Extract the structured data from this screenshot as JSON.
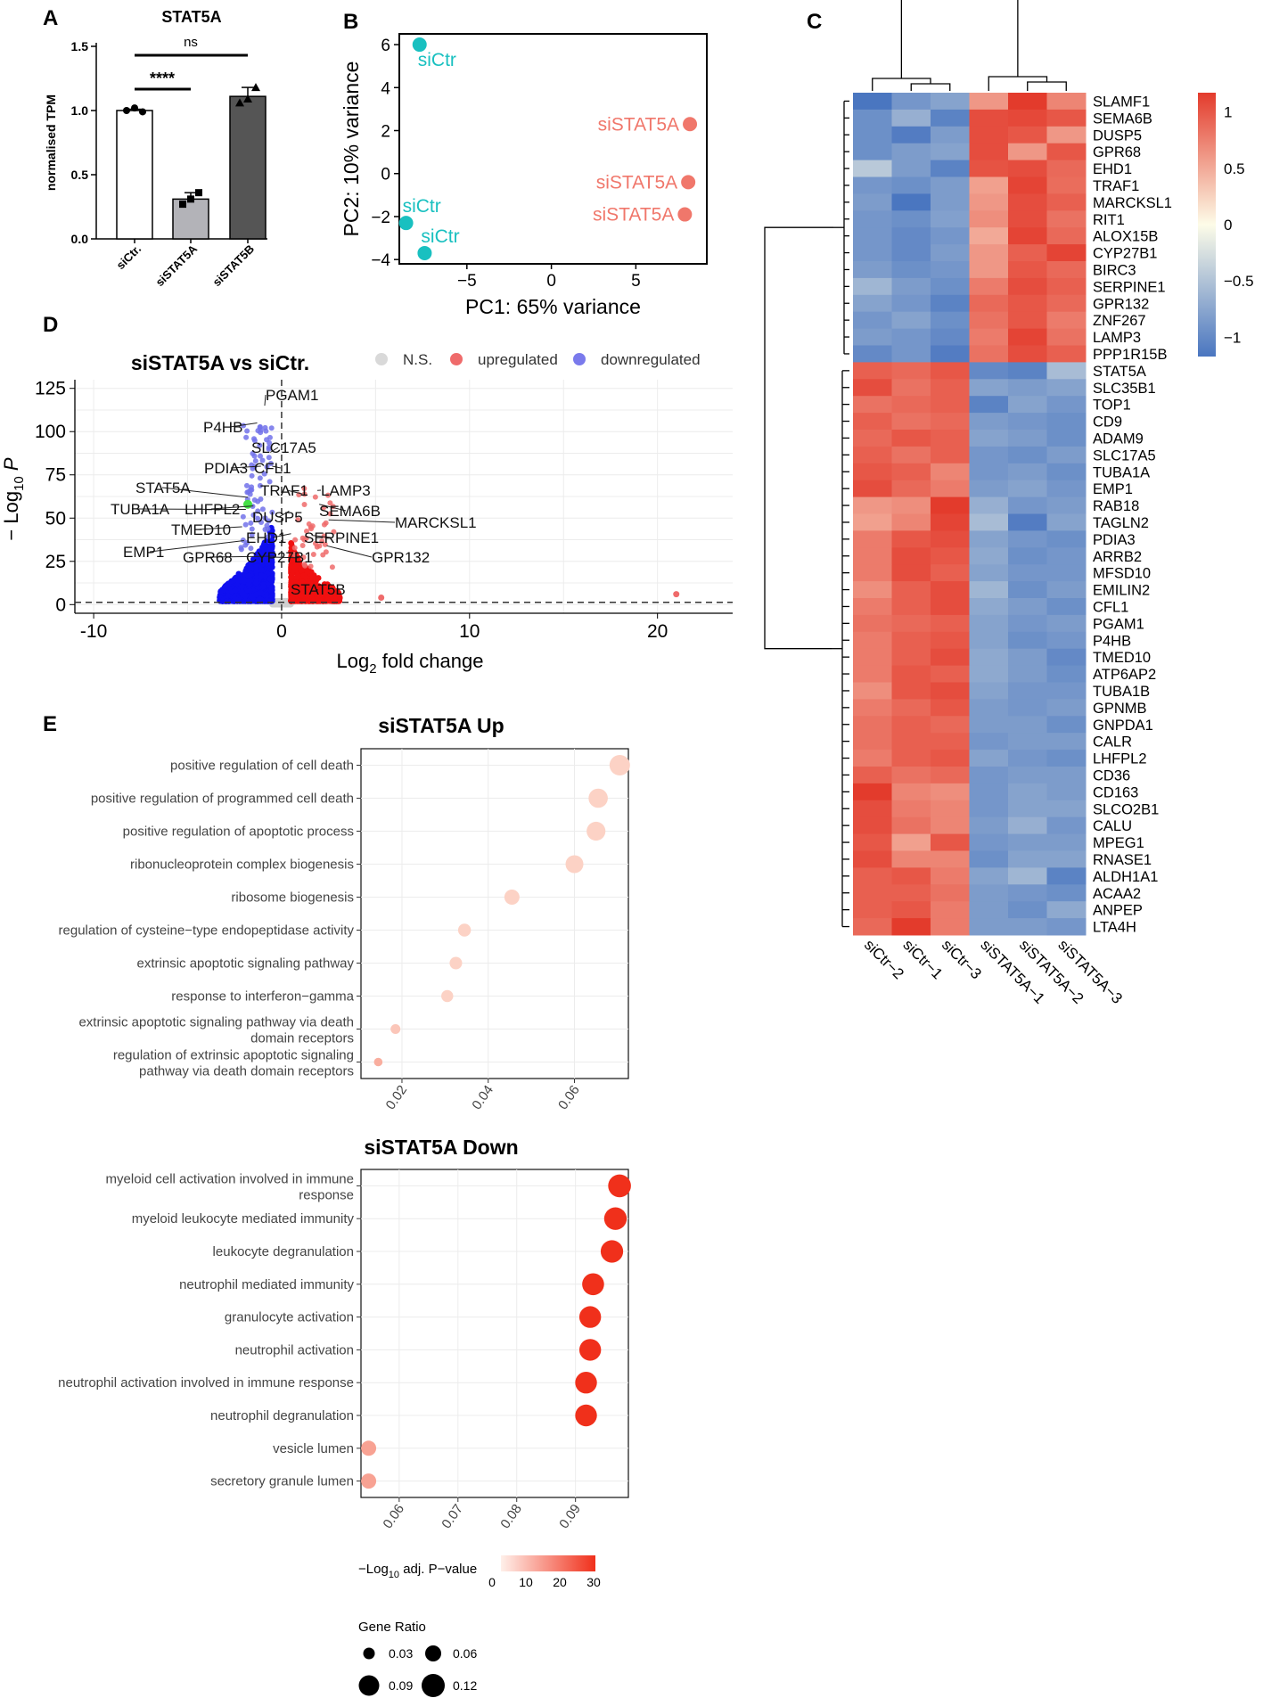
{
  "chart_data": [
    {
      "panel": "A",
      "type": "bar",
      "title": "STAT5A",
      "ylabel": "normalised TPM",
      "ylim": [
        0,
        1.5
      ],
      "yticks": [
        "0.0",
        "0.5",
        "1.0",
        "1.5"
      ],
      "categories": [
        "siCtr.",
        "siSTAT5A",
        "siSTAT5B"
      ],
      "values": [
        1.0,
        0.31,
        1.11
      ],
      "errors": [
        0.01,
        0.05,
        0.07
      ],
      "points": [
        [
          1.0,
          1.02,
          0.99
        ],
        [
          0.27,
          0.31,
          0.36
        ],
        [
          1.06,
          1.09,
          1.18
        ]
      ],
      "colors": [
        "#ffffff",
        "#b3b3b8",
        "#555555"
      ],
      "annotations": [
        {
          "from": 0,
          "to": 1,
          "label": "****"
        },
        {
          "from": 0,
          "to": 2,
          "label": "ns"
        }
      ]
    },
    {
      "panel": "B",
      "type": "scatter",
      "xlabel": "PC1: 65% variance",
      "ylabel": "PC2: 10% variance",
      "xlim": [
        -9,
        9.2
      ],
      "ylim": [
        -4.2,
        6.5
      ],
      "xticks": [
        -5,
        0,
        5
      ],
      "yticks": [
        -4,
        -2,
        0,
        2,
        4,
        6
      ],
      "series": [
        {
          "name": "siCtr",
          "color": "#19c0c0",
          "points": [
            [
              -7.8,
              6.0,
              "siCtr"
            ],
            [
              -8.6,
              -2.3,
              "siCtr"
            ],
            [
              -7.5,
              -3.7,
              "siCtr"
            ]
          ]
        },
        {
          "name": "siSTAT5A",
          "color": "#f0776b",
          "points": [
            [
              8.2,
              2.3,
              "siSTAT5A"
            ],
            [
              8.1,
              -0.4,
              "siSTAT5A"
            ],
            [
              7.9,
              -1.9,
              "siSTAT5A"
            ]
          ]
        }
      ]
    },
    {
      "panel": "C",
      "type": "heatmap",
      "columns": [
        "siCtr−2",
        "siCtr−1",
        "siCtr−3",
        "siSTAT5A−1",
        "siSTAT5A−2",
        "siSTAT5A−3"
      ],
      "rows": [
        "SLAMF1",
        "SEMA6B",
        "DUSP5",
        "GPR68",
        "EHD1",
        "TRAF1",
        "MARCKSL1",
        "RIT1",
        "ALOX15B",
        "CYP27B1",
        "BIRC3",
        "SERPINE1",
        "GPR132",
        "ZNF267",
        "LAMP3",
        "PPP1R15B",
        "STAT5A",
        "SLC35B1",
        "TOP1",
        "CD9",
        "ADAM9",
        "SLC17A5",
        "TUBA1A",
        "EMP1",
        "RAB18",
        "TAGLN2",
        "PDIA3",
        "ARRB2",
        "MFSD10",
        "EMILIN2",
        "CFL1",
        "PGAM1",
        "P4HB",
        "TMED10",
        "ATP6AP2",
        "TUBA1B",
        "GPNMB",
        "GNPDA1",
        "CALR",
        "LHFPL2",
        "CD36",
        "CD163",
        "SLCO2B1",
        "CALU",
        "MPEG1",
        "RNASE1",
        "ALDH1A1",
        "ACAA2",
        "ANPEP",
        "LTA4H"
      ],
      "values": [
        [
          -1.05,
          -0.8,
          -0.7,
          0.55,
          1.1,
          0.65
        ],
        [
          -0.85,
          -0.6,
          -0.95,
          0.95,
          0.98,
          0.9
        ],
        [
          -0.85,
          -1.0,
          -0.75,
          0.95,
          0.9,
          0.55
        ],
        [
          -0.85,
          -0.75,
          -0.7,
          0.95,
          0.55,
          0.9
        ],
        [
          -0.4,
          -0.75,
          -0.95,
          0.92,
          0.95,
          0.8
        ],
        [
          -0.8,
          -0.85,
          -0.75,
          0.5,
          1.0,
          0.78
        ],
        [
          -0.75,
          -1.05,
          -0.75,
          0.55,
          0.95,
          0.85
        ],
        [
          -0.8,
          -0.85,
          -0.72,
          0.6,
          0.95,
          0.75
        ],
        [
          -0.8,
          -0.9,
          -0.8,
          0.45,
          1.0,
          0.8
        ],
        [
          -0.8,
          -0.9,
          -0.75,
          0.55,
          0.85,
          1.0
        ],
        [
          -0.75,
          -0.85,
          -0.8,
          0.55,
          0.9,
          0.8
        ],
        [
          -0.55,
          -0.75,
          -0.85,
          0.7,
          0.95,
          0.85
        ],
        [
          -0.7,
          -0.8,
          -0.95,
          0.8,
          0.9,
          0.8
        ],
        [
          -0.8,
          -0.7,
          -0.85,
          0.75,
          0.9,
          0.7
        ],
        [
          -0.75,
          -0.8,
          -0.9,
          0.7,
          1.0,
          0.75
        ],
        [
          -0.9,
          -0.8,
          -1.0,
          0.75,
          0.95,
          0.85
        ],
        [
          0.85,
          0.8,
          0.9,
          -0.9,
          -0.95,
          -0.5
        ],
        [
          0.95,
          0.75,
          0.85,
          -0.7,
          -0.75,
          -0.7
        ],
        [
          0.75,
          0.8,
          0.85,
          -0.95,
          -0.7,
          -0.8
        ],
        [
          0.85,
          0.75,
          0.8,
          -0.75,
          -0.8,
          -0.85
        ],
        [
          0.8,
          0.9,
          0.85,
          -0.7,
          -0.75,
          -0.85
        ],
        [
          0.85,
          0.75,
          0.85,
          -0.8,
          -0.85,
          -0.75
        ],
        [
          0.9,
          0.85,
          0.65,
          -0.8,
          -0.75,
          -0.85
        ],
        [
          0.95,
          0.8,
          0.7,
          -0.75,
          -0.7,
          -0.8
        ],
        [
          0.55,
          0.6,
          1.1,
          -0.6,
          -0.8,
          -0.75
        ],
        [
          0.5,
          0.65,
          1.0,
          -0.5,
          -1.0,
          -0.7
        ],
        [
          0.7,
          0.9,
          0.95,
          -0.7,
          -0.8,
          -0.85
        ],
        [
          0.7,
          0.95,
          0.9,
          -0.65,
          -0.85,
          -0.8
        ],
        [
          0.7,
          0.95,
          0.85,
          -0.7,
          -0.8,
          -0.8
        ],
        [
          0.6,
          0.85,
          0.95,
          -0.55,
          -0.85,
          -0.75
        ],
        [
          0.7,
          0.85,
          0.95,
          -0.65,
          -0.75,
          -0.85
        ],
        [
          0.75,
          0.8,
          0.85,
          -0.7,
          -0.8,
          -0.75
        ],
        [
          0.7,
          0.85,
          0.9,
          -0.7,
          -0.85,
          -0.8
        ],
        [
          0.7,
          0.85,
          0.95,
          -0.65,
          -0.75,
          -0.9
        ],
        [
          0.7,
          0.9,
          0.85,
          -0.65,
          -0.75,
          -0.85
        ],
        [
          0.6,
          0.9,
          0.95,
          -0.7,
          -0.8,
          -0.8
        ],
        [
          0.7,
          0.8,
          0.9,
          -0.75,
          -0.8,
          -0.75
        ],
        [
          0.75,
          0.85,
          0.8,
          -0.75,
          -0.75,
          -0.85
        ],
        [
          0.75,
          0.85,
          0.85,
          -0.8,
          -0.75,
          -0.75
        ],
        [
          0.7,
          0.85,
          0.9,
          -0.7,
          -0.8,
          -0.85
        ],
        [
          0.85,
          0.75,
          0.8,
          -0.8,
          -0.75,
          -0.75
        ],
        [
          1.05,
          0.65,
          0.6,
          -0.8,
          -0.7,
          -0.75
        ],
        [
          0.95,
          0.7,
          0.65,
          -0.8,
          -0.7,
          -0.7
        ],
        [
          0.95,
          0.75,
          0.65,
          -0.75,
          -0.6,
          -0.8
        ],
        [
          0.9,
          0.5,
          0.9,
          -0.8,
          -0.75,
          -0.75
        ],
        [
          0.95,
          0.65,
          0.65,
          -0.85,
          -0.7,
          -0.7
        ],
        [
          0.85,
          0.9,
          0.7,
          -0.7,
          -0.55,
          -0.95
        ],
        [
          0.85,
          0.85,
          0.75,
          -0.75,
          -0.8,
          -0.85
        ],
        [
          0.85,
          0.9,
          0.7,
          -0.75,
          -0.85,
          -0.65
        ],
        [
          0.8,
          1.05,
          0.7,
          -0.75,
          -0.75,
          -0.8
        ]
      ],
      "colorbar": {
        "ticks": [
          1,
          0.5,
          0,
          -0.5,
          -1
        ],
        "labels": [
          "1",
          "0.5",
          "0",
          "−0.5",
          "−1"
        ],
        "low": "#4a76c0",
        "mid": "#fdfce8",
        "high": "#e33b2c"
      }
    },
    {
      "panel": "D",
      "type": "scatter",
      "title": "siSTAT5A vs siCtr.",
      "xlabel": "Log",
      "xlabel_sub": "2",
      "xlabel_rest": " fold change",
      "ylabel": "− Log",
      "ylabel_sub": "10",
      "ylabel_rest": " P",
      "xlim": [
        -11,
        24
      ],
      "ylim": [
        -5,
        130
      ],
      "xticks": [
        -10,
        0,
        10,
        20
      ],
      "yticks": [
        0,
        25,
        50,
        75,
        100,
        125
      ],
      "legend": [
        {
          "label": "N.S.",
          "color": "#d9d9d9"
        },
        {
          "label": "upregulated",
          "color": "#ef6b6b"
        },
        {
          "label": "downregulated",
          "color": "#7a7aec"
        }
      ],
      "labeled_points": [
        {
          "label": "PGAM1",
          "x": -0.9,
          "y": 115
        },
        {
          "label": "P4HB",
          "x": -1.3,
          "y": 105
        },
        {
          "label": "SLC17A5",
          "x": -0.6,
          "y": 88
        },
        {
          "label": "PDIA3",
          "x": -1.1,
          "y": 80
        },
        {
          "label": "CFL1",
          "x": -0.5,
          "y": 80
        },
        {
          "label": "STAT5A",
          "x": -1.8,
          "y": 62
        },
        {
          "label": "TRAF1",
          "x": 1.1,
          "y": 64
        },
        {
          "label": "LAMP3",
          "x": 1.9,
          "y": 66
        },
        {
          "label": "SEMA6B",
          "x": 2.0,
          "y": 58
        },
        {
          "label": "TUBA1A",
          "x": -1.9,
          "y": 55
        },
        {
          "label": "LHFPL2",
          "x": -1.5,
          "y": 57
        },
        {
          "label": "DUSP5",
          "x": 0.4,
          "y": 54
        },
        {
          "label": "MARCKSL1",
          "x": 2.5,
          "y": 49
        },
        {
          "label": "TMED10",
          "x": -2.1,
          "y": 45
        },
        {
          "label": "EHD1",
          "x": 0.5,
          "y": 41
        },
        {
          "label": "SERPINE1",
          "x": 1.6,
          "y": 40
        },
        {
          "label": "EMP1",
          "x": -2.0,
          "y": 37
        },
        {
          "label": "GPR68",
          "x": -0.4,
          "y": 28
        },
        {
          "label": "CYP27B1",
          "x": 0.9,
          "y": 27
        },
        {
          "label": "GPR132",
          "x": 2.4,
          "y": 34
        },
        {
          "label": "STAT5B",
          "x": 1.9,
          "y": 8
        }
      ],
      "outlier_points": [
        {
          "x": 21,
          "y": 6
        },
        {
          "x": 5.3,
          "y": 4
        }
      ]
    },
    {
      "panel": "E",
      "type": "scatter",
      "title": "siSTAT5A Up",
      "categories": [
        "positive regulation of cell death",
        "positive regulation of programmed cell death",
        "positive regulation of apoptotic process",
        "ribonucleoprotein complex biogenesis",
        "ribosome biogenesis",
        "regulation of cysteine−type endopeptidase activity",
        "extrinsic apoptotic signaling pathway",
        "response to interferon−gamma",
        "extrinsic apoptotic signaling pathway via death|domain receptors",
        "regulation of extrinsic apoptotic signaling|pathway via death domain receptors"
      ],
      "values": [
        0.0705,
        0.0655,
        0.065,
        0.06,
        0.0455,
        0.0345,
        0.0325,
        0.0305,
        0.0185,
        0.0145
      ],
      "sizes": [
        0.085,
        0.078,
        0.076,
        0.07,
        0.055,
        0.042,
        0.04,
        0.037,
        0.025,
        0.018
      ],
      "neglog_p": [
        3,
        3,
        3,
        3,
        3,
        3,
        3,
        3,
        5,
        9
      ],
      "xlim": [
        0.0105,
        0.0725
      ],
      "xticks": [
        0.02,
        0.04,
        0.06
      ],
      "xticklabels": [
        "0.02",
        "0.04",
        "0.06"
      ]
    },
    {
      "panel": "E",
      "type": "scatter",
      "title": "siSTAT5A Down",
      "categories": [
        "myeloid cell activation involved in immune|response",
        "myeloid leukocyte mediated immunity",
        "leukocyte degranulation",
        "neutrophil mediated immunity",
        "granulocyte activation",
        "neutrophil activation",
        "neutrophil activation involved in immune response",
        "neutrophil degranulation",
        "vesicle lumen",
        "secretory granule lumen"
      ],
      "values": [
        0.0975,
        0.0968,
        0.0962,
        0.093,
        0.0925,
        0.0925,
        0.0918,
        0.0918,
        0.0548,
        0.0548
      ],
      "sizes": [
        0.098,
        0.097,
        0.096,
        0.093,
        0.092,
        0.092,
        0.092,
        0.092,
        0.055,
        0.055
      ],
      "neglog_p": [
        30,
        30,
        30,
        30,
        30,
        30,
        30,
        30,
        11,
        11
      ],
      "xlim": [
        0.0535,
        0.099
      ],
      "xticks": [
        0.06,
        0.07,
        0.08,
        0.09
      ],
      "xticklabels": [
        "0.06",
        "0.07",
        "0.08",
        "0.09"
      ],
      "color_legend": {
        "title_pre": "−Log",
        "title_sub": "10",
        "title_post": " adj. P−value",
        "ticks": [
          "0",
          "10",
          "20",
          "30"
        ],
        "low": "#fff0ea",
        "high": "#f0301b"
      },
      "size_legend": {
        "title": "Gene Ratio",
        "entries": [
          "0.03",
          "0.06",
          "0.09",
          "0.12"
        ]
      }
    }
  ],
  "panel_labels": {
    "A": "A",
    "B": "B",
    "C": "C",
    "D": "D",
    "E": "E"
  }
}
